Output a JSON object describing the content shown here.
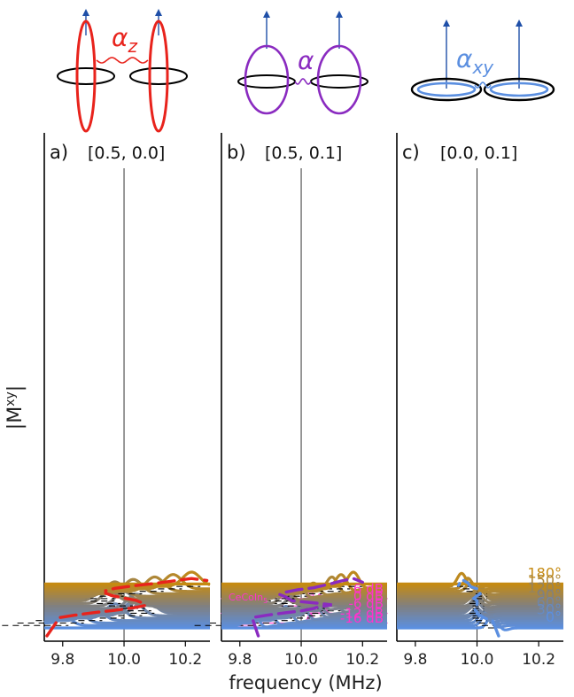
{
  "colors": {
    "alpha_z": "#e8231c",
    "alpha": "#8a2bc0",
    "alpha_xy": "#5b8fe0",
    "ring": "#000000",
    "ceco": "#ff33cc",
    "ceco_fill": "#f7a8e8",
    "angle_180": "#c58a12",
    "angle_0": "#5b8fe0"
  },
  "icons": [
    {
      "name": "spin-pair-alpha-z-icon",
      "label": "α",
      "sub": "z"
    },
    {
      "name": "spin-pair-alpha-icon",
      "label": "α",
      "sub": ""
    },
    {
      "name": "spin-pair-alpha-xy-icon",
      "label": "α",
      "sub": "xy"
    }
  ],
  "ylabel": "|Mˣʸ|",
  "ylabel_main": "|M",
  "ylabel_sup": "xy",
  "ylabel_end": "|",
  "chart_data": [
    {
      "type": "line",
      "panel_label": "a)",
      "params": "[0.5, 0.0]",
      "xlabel": "",
      "xlim": [
        9.74,
        10.28
      ],
      "xticks": [
        9.8,
        10.0,
        10.2
      ],
      "xtick_labels": [
        "9.8",
        "10.0",
        "10.2"
      ],
      "vline": 10.0,
      "dashed_curve_color": "#e8231c",
      "angles_deg": [
        0,
        10,
        20,
        30,
        40,
        50,
        60,
        70,
        80,
        90,
        100,
        110,
        120,
        130,
        140,
        150,
        160,
        170,
        180
      ],
      "peak_freq_MHz": [
        null,
        9.79,
        9.84,
        9.9,
        9.97,
        10.03,
        10.07,
        10.06,
        10.04,
        10.0,
        9.96,
        9.94,
        9.94,
        9.97,
        10.03,
        10.1,
        10.16,
        10.22,
        null
      ],
      "peak_height": [
        0,
        0.6,
        0.6,
        0.6,
        0.6,
        0.6,
        0.6,
        0.6,
        0.6,
        0.6,
        0.6,
        0.6,
        0.6,
        0.6,
        0.6,
        0.6,
        0.6,
        0.6,
        0
      ],
      "peak_width_MHz": 0.04
    },
    {
      "type": "line",
      "panel_label": "b)",
      "params": "[0.5, 0.1]",
      "xlabel": "frequency (MHz)",
      "xlim": [
        9.74,
        10.28
      ],
      "xticks": [
        9.8,
        10.0,
        10.2
      ],
      "xtick_labels": [
        "9.8",
        "10.0",
        "10.2"
      ],
      "vline": 10.0,
      "dashed_curve_color": "#8a2bc0",
      "angles_deg": [
        0,
        10,
        20,
        30,
        40,
        50,
        60,
        70,
        80,
        90,
        100,
        110,
        120,
        130,
        140,
        150,
        160,
        170,
        180
      ],
      "peak_freq_MHz": [
        null,
        9.84,
        9.89,
        9.95,
        10.0,
        10.04,
        10.05,
        10.1,
        10.05,
        9.97,
        9.95,
        9.93,
        9.95,
        9.99,
        10.04,
        10.1,
        10.13,
        10.17,
        null
      ],
      "peak_height": [
        0,
        0.6,
        0.6,
        0.6,
        0.55,
        0.55,
        0.45,
        0.45,
        0.4,
        0.4,
        0.5,
        0.5,
        0.5,
        0.5,
        0.45,
        0.6,
        0.6,
        0.6,
        0
      ],
      "peak_width_MHz": 0.025,
      "ceco_label": "CeCoIn",
      "ceco_sub": "5",
      "ceco_series": [
        {
          "power_label": "6 dB",
          "angle_deg": 120,
          "peaks": [
            [
              9.95,
              0.55
            ]
          ]
        },
        {
          "power_label": "0 dB",
          "angle_deg": 90,
          "peaks": [
            [
              10.03,
              0.8
            ],
            [
              10.06,
              0.5
            ]
          ]
        },
        {
          "power_label": "-6 dB",
          "angle_deg": 60,
          "peaks": [
            [
              10.04,
              0.45
            ],
            [
              10.07,
              0.4
            ]
          ]
        },
        {
          "power_label": "-12 dB",
          "angle_deg": 20,
          "peaks": [
            [
              9.8,
              1.1
            ],
            [
              10.03,
              0.4
            ]
          ]
        },
        {
          "power_label": "-16 dB",
          "angle_deg": 0,
          "peaks": [
            [
              9.8,
              1.1
            ],
            [
              9.83,
              0.5
            ]
          ]
        }
      ]
    },
    {
      "type": "line",
      "panel_label": "c)",
      "params": "[0.0, 0.1]",
      "xlabel": "",
      "xlim": [
        9.74,
        10.28
      ],
      "xticks": [
        9.8,
        10.0,
        10.2
      ],
      "xtick_labels": [
        "9.8",
        "10.0",
        "10.2"
      ],
      "vline": 10.0,
      "dashed_curve_color": "#5b8fe0",
      "angles_deg": [
        0,
        10,
        20,
        30,
        40,
        50,
        60,
        70,
        80,
        90,
        100,
        110,
        120,
        130,
        140,
        150,
        160,
        170,
        180
      ],
      "peak_freq_MHz": [
        10.05,
        10.03,
        10.02,
        10.01,
        10.0,
        10.0,
        9.99,
        10.0,
        10.0,
        10.0,
        9.99,
        10.0,
        10.01,
        10.01,
        10.01,
        9.98,
        9.97,
        9.95,
        null
      ],
      "peak_height": [
        0.6,
        0.5,
        0.45,
        0.4,
        0.3,
        0.3,
        0.35,
        0.35,
        0.35,
        0.4,
        0.4,
        0.4,
        0.35,
        0.35,
        0.3,
        0.35,
        0.45,
        0.55,
        0
      ],
      "peak_width_MHz": 0.02,
      "angle_labels": [
        {
          "angle_deg": 180,
          "text": "180°"
        },
        {
          "angle_deg": 150,
          "text": "150°"
        },
        {
          "angle_deg": 120,
          "text": "120°"
        },
        {
          "angle_deg": 90,
          "text": "90°"
        },
        {
          "angle_deg": 60,
          "text": "60°"
        },
        {
          "angle_deg": 30,
          "text": "30°"
        },
        {
          "angle_deg": 0,
          "text": "0°"
        }
      ]
    }
  ]
}
